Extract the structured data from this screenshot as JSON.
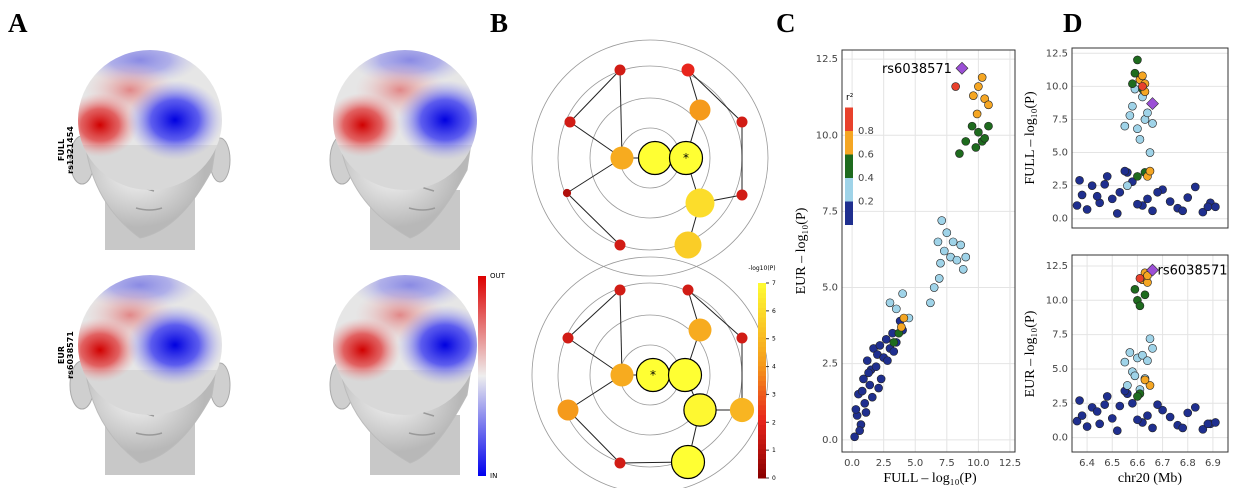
{
  "panel_labels": [
    "A",
    "B",
    "C",
    "D"
  ],
  "heads": {
    "rows": [
      [
        "FULL",
        "rs1321454"
      ],
      [
        "EUR",
        "rs6038571"
      ]
    ],
    "colorbar": [
      "OUT",
      "IN"
    ]
  },
  "network": {
    "colorbar_title": "-log10(P)",
    "colorbar_range": [
      0,
      7
    ],
    "colorbar_ticks": [
      0,
      1,
      2,
      3,
      4,
      5,
      6,
      7
    ],
    "marker": "*",
    "graphs": [
      {
        "values": [
          1.5,
          2,
          1.5,
          4,
          1.5,
          4.5,
          7,
          7,
          0.8,
          1.5,
          6,
          1.5,
          5.5
        ]
      },
      {
        "values": [
          1.5,
          1.5,
          1.5,
          4.5,
          1.5,
          4.5,
          7,
          7,
          4,
          6.8,
          4.8,
          1.5,
          7
        ]
      }
    ]
  },
  "chart_data": [
    {
      "type": "scatter",
      "x_label": "FULL – log₁₀(P)",
      "y_label": "EUR – log₁₀(P)",
      "xlim": [
        -0.8,
        12.9
      ],
      "ylim": [
        -0.4,
        12.8
      ],
      "xticks": [
        {
          "value": 0,
          "label": "0.0"
        },
        {
          "value": 2.5,
          "label": "2.5"
        },
        {
          "value": 5,
          "label": "5.0"
        },
        {
          "value": 7.5,
          "label": "7.5"
        },
        {
          "value": 10,
          "label": "10.0"
        },
        {
          "value": 12.5,
          "label": "12.5"
        }
      ],
      "yticks": [
        {
          "value": 0,
          "label": "0.0"
        },
        {
          "value": 2.5,
          "label": "2.5"
        },
        {
          "value": 5,
          "label": "5.0"
        },
        {
          "value": 7.5,
          "label": "7.5"
        },
        {
          "value": 10,
          "label": "10.0"
        },
        {
          "value": 12.5,
          "label": "12.5"
        }
      ],
      "grid": true,
      "legend_title": "r²",
      "legend_ticks": [
        0.2,
        0.4,
        0.6,
        0.8
      ],
      "series": [
        {
          "color": "#1f2f8f",
          "x": [
            0.2,
            0.4,
            0.5,
            0.7,
            0.9,
            1.0,
            1.2,
            1.4,
            1.5,
            1.7,
            1.9,
            2.0,
            2.2,
            2.5,
            2.7,
            3.0,
            3.2,
            3.5,
            0.3,
            0.6,
            1.1,
            1.6,
            2.3,
            2.8,
            3.3,
            0.8,
            1.3,
            4.0,
            3.8,
            2.1
          ],
          "y": [
            0.1,
            0.8,
            1.5,
            0.5,
            2.0,
            1.2,
            2.6,
            1.8,
            2.3,
            3.0,
            2.4,
            2.8,
            3.1,
            2.7,
            3.3,
            3.0,
            3.5,
            3.2,
            1.0,
            0.3,
            0.9,
            1.4,
            2.0,
            2.6,
            2.9,
            1.6,
            2.2,
            3.6,
            3.9,
            1.7
          ]
        },
        {
          "color": "#9fd3e8",
          "x": [
            3.0,
            3.5,
            4.0,
            4.5,
            6.5,
            6.8,
            7.0,
            7.3,
            7.5,
            7.8,
            8.0,
            8.3,
            8.6,
            9.0,
            6.2,
            7.1,
            8.8,
            6.9
          ],
          "y": [
            4.5,
            4.3,
            4.8,
            4.0,
            5.0,
            6.5,
            5.8,
            6.2,
            6.8,
            6.0,
            6.5,
            5.9,
            6.4,
            6.0,
            4.5,
            7.2,
            5.6,
            5.3
          ]
        },
        {
          "color": "#1e6b1e",
          "x": [
            3.3,
            3.7,
            8.5,
            9.0,
            9.5,
            10.0,
            10.3,
            10.8,
            9.8,
            10.5
          ],
          "y": [
            3.2,
            3.5,
            9.4,
            9.8,
            10.3,
            10.1,
            9.8,
            10.3,
            9.6,
            9.9
          ]
        },
        {
          "color": "#f5a623",
          "x": [
            3.9,
            4.1,
            10.0,
            10.3,
            10.5,
            10.8,
            9.6,
            9.9
          ],
          "y": [
            3.7,
            4.0,
            11.6,
            11.9,
            11.2,
            11.0,
            11.3,
            10.7
          ]
        },
        {
          "color": "#e8412c",
          "x": [
            8.2
          ],
          "y": [
            11.6
          ]
        }
      ],
      "highlight": {
        "x": 8.7,
        "y": 12.2,
        "label": "rs6038571",
        "color": "#9b4fd6"
      }
    },
    {
      "type": "scatter",
      "y_label": "FULL – log₁₀(P)",
      "xlim": [
        6.34,
        6.96
      ],
      "ylim": [
        -0.7,
        12.9
      ],
      "yticks": [
        {
          "value": 0,
          "label": "0.0"
        },
        {
          "value": 2.5,
          "label": "2.5"
        },
        {
          "value": 5,
          "label": "5.0"
        },
        {
          "value": 7.5,
          "label": "7.5"
        },
        {
          "value": 10,
          "label": "10.0"
        },
        {
          "value": 12.5,
          "label": "12.5"
        }
      ],
      "grid": true,
      "series": [
        {
          "color": "#1f2f8f",
          "x": [
            6.36,
            6.38,
            6.4,
            6.42,
            6.45,
            6.48,
            6.5,
            6.53,
            6.56,
            6.58,
            6.62,
            6.66,
            6.7,
            6.73,
            6.76,
            6.8,
            6.83,
            6.86,
            6.89,
            6.91,
            6.44,
            6.52,
            6.6,
            6.68,
            6.78,
            6.88,
            6.37,
            6.47,
            6.55,
            6.64
          ],
          "y": [
            1.0,
            1.8,
            0.7,
            2.5,
            1.2,
            3.2,
            1.5,
            2.0,
            3.5,
            2.8,
            1.0,
            0.6,
            2.2,
            1.3,
            0.8,
            1.6,
            2.4,
            0.5,
            1.2,
            0.9,
            1.7,
            0.4,
            1.1,
            2.0,
            0.6,
            0.9,
            2.9,
            2.6,
            3.6,
            1.5
          ]
        },
        {
          "color": "#9fd3e8",
          "x": [
            6.55,
            6.57,
            6.58,
            6.6,
            6.62,
            6.63,
            6.64,
            6.66,
            6.59,
            6.61,
            6.56,
            6.65
          ],
          "y": [
            7.0,
            7.8,
            8.5,
            6.8,
            9.2,
            7.5,
            8.0,
            7.2,
            9.8,
            6.0,
            2.5,
            5.0
          ]
        },
        {
          "color": "#1e6b1e",
          "x": [
            6.59,
            6.6,
            6.61,
            6.6,
            6.62,
            6.63,
            6.58
          ],
          "y": [
            11.0,
            12.0,
            10.5,
            3.2,
            9.8,
            3.5,
            10.2
          ]
        },
        {
          "color": "#f5a623",
          "x": [
            6.61,
            6.62,
            6.63,
            6.64,
            6.65,
            6.63
          ],
          "y": [
            10.5,
            10.8,
            9.6,
            3.2,
            3.6,
            10.2
          ]
        },
        {
          "color": "#e8412c",
          "x": [
            6.62
          ],
          "y": [
            10.0
          ]
        }
      ],
      "highlight": {
        "x": 6.66,
        "y": 8.7,
        "color": "#9b4fd6"
      }
    },
    {
      "type": "scatter",
      "x_label": "chr20 (Mb)",
      "y_label": "EUR – log₁₀(P)",
      "xlim": [
        6.34,
        6.96
      ],
      "ylim": [
        -1.05,
        13.3
      ],
      "xticks": [
        6.4,
        6.5,
        6.6,
        6.7,
        6.8,
        6.9
      ],
      "yticks": [
        {
          "value": 0,
          "label": "0.0"
        },
        {
          "value": 2.5,
          "label": "2.5"
        },
        {
          "value": 5,
          "label": "5.0"
        },
        {
          "value": 7.5,
          "label": "7.5"
        },
        {
          "value": 10,
          "label": "10.0"
        },
        {
          "value": 12.5,
          "label": "12.5"
        }
      ],
      "grid": true,
      "series": [
        {
          "color": "#1f2f8f",
          "x": [
            6.36,
            6.38,
            6.4,
            6.42,
            6.45,
            6.48,
            6.5,
            6.53,
            6.56,
            6.58,
            6.62,
            6.66,
            6.7,
            6.73,
            6.76,
            6.8,
            6.83,
            6.86,
            6.89,
            6.91,
            6.44,
            6.52,
            6.6,
            6.68,
            6.78,
            6.88,
            6.37,
            6.47,
            6.55,
            6.64
          ],
          "y": [
            1.2,
            1.6,
            0.8,
            2.2,
            1.0,
            3.0,
            1.4,
            2.3,
            3.2,
            2.5,
            1.1,
            0.7,
            2.0,
            1.5,
            0.9,
            1.8,
            2.2,
            0.6,
            1.0,
            1.1,
            1.9,
            0.5,
            1.3,
            2.4,
            0.7,
            1.0,
            2.7,
            2.4,
            3.4,
            1.6
          ]
        },
        {
          "color": "#9fd3e8",
          "x": [
            6.55,
            6.57,
            6.58,
            6.6,
            6.62,
            6.63,
            6.64,
            6.66,
            6.59,
            6.61,
            6.56,
            6.65
          ],
          "y": [
            5.5,
            6.2,
            4.8,
            5.8,
            6.0,
            4.3,
            5.6,
            6.5,
            4.5,
            3.5,
            3.8,
            7.2
          ]
        },
        {
          "color": "#1e6b1e",
          "x": [
            6.6,
            6.61,
            6.59,
            6.62,
            6.61,
            6.6,
            6.63
          ],
          "y": [
            10.0,
            9.6,
            10.8,
            11.5,
            3.2,
            3.0,
            10.4
          ]
        },
        {
          "color": "#f5a623",
          "x": [
            6.62,
            6.63,
            6.64,
            6.65,
            6.63,
            6.64
          ],
          "y": [
            11.5,
            12.0,
            11.3,
            3.8,
            4.2,
            11.8
          ]
        },
        {
          "color": "#e8412c",
          "x": [
            6.61
          ],
          "y": [
            11.6
          ]
        }
      ],
      "highlight": {
        "x": 6.66,
        "y": 12.2,
        "label": "rs6038571",
        "color": "#9b4fd6"
      }
    }
  ]
}
